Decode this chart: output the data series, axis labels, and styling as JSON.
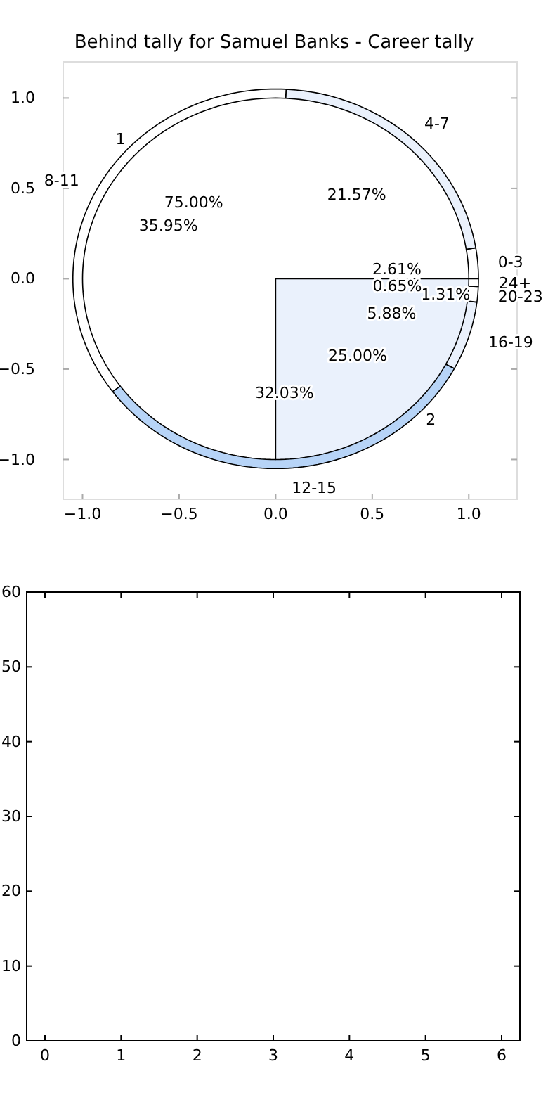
{
  "chart_data": [
    {
      "type": "line",
      "title": "Behind tally for Samuel Banks - Career tally",
      "xlim": [
        -1.1,
        1.25
      ],
      "xticks": [
        {
          "value": -1,
          "label": "−1.0"
        },
        {
          "value": -0.5,
          "label": "−0.5"
        },
        {
          "value": 0,
          "label": "0.0"
        },
        {
          "value": 0.5,
          "label": "0.5"
        },
        {
          "value": 1,
          "label": "1.0"
        }
      ],
      "ylim": [
        -1.22,
        1.2
      ],
      "yticks": [
        {
          "value": -1,
          "label": "−1.0"
        },
        {
          "value": -0.5,
          "label": "−0.5"
        },
        {
          "value": 0,
          "label": "0.0"
        },
        {
          "value": 0.5,
          "label": "0.5"
        },
        {
          "value": 1,
          "label": "1.0"
        }
      ]
    },
    {
      "type": "pie",
      "categories": [
        "1",
        "2"
      ],
      "values": [
        75,
        25
      ],
      "value_labels": [
        "75.00%",
        "25.00%"
      ],
      "colors": [
        "#ffffff",
        "#eaf1fc"
      ]
    },
    {
      "type": "pie",
      "categories": [
        "0-3",
        "4-7",
        "8-11",
        "12-15",
        "16-19",
        "20-23",
        "24+"
      ],
      "values": [
        2.61,
        21.57,
        35.95,
        32.03,
        5.88,
        1.31,
        0.65
      ],
      "value_labels": [
        "2.61%",
        "21.57%",
        "35.95%",
        "32.03%",
        "5.88%",
        "1.31%",
        "0.65%"
      ],
      "colors": [
        "#ffffff",
        "#eaf1fc",
        "#ffffff",
        "#b7d4f7",
        "#eaf1fc",
        "#ffffff",
        "#ffffff"
      ]
    },
    {
      "type": "line",
      "xlim": [
        -0.24,
        6.24
      ],
      "xticks": [
        0,
        1,
        2,
        3,
        4,
        5,
        6
      ],
      "ylim": [
        0,
        60
      ],
      "yticks": [
        0,
        10,
        20,
        30,
        40,
        50,
        60
      ]
    }
  ]
}
